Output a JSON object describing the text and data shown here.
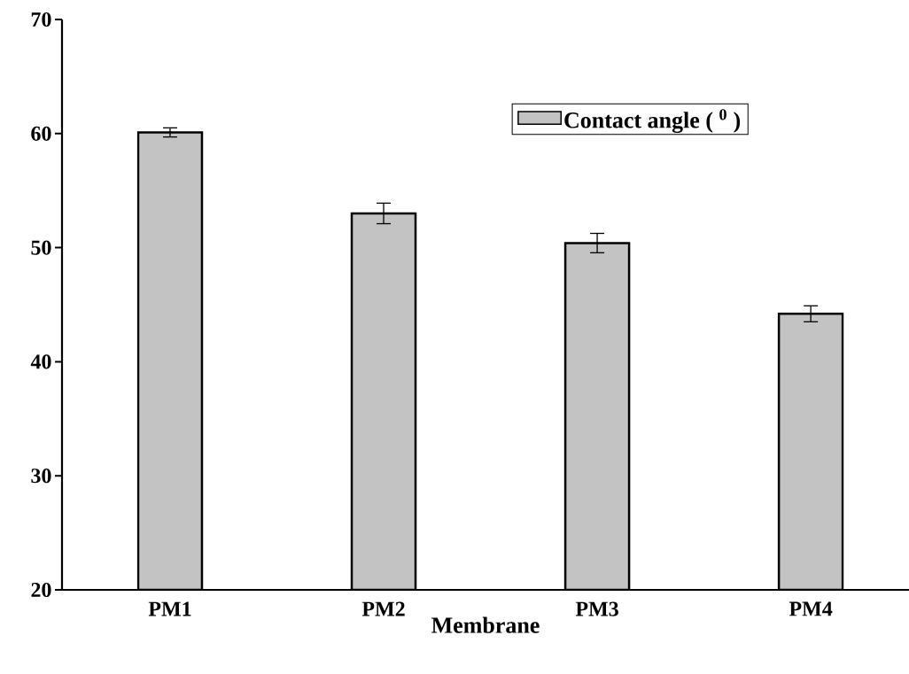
{
  "chart_data": {
    "type": "bar",
    "xlabel": "Membrane",
    "categories": [
      "PM1",
      "PM2",
      "PM3",
      "PM4"
    ],
    "series": [
      {
        "name": "Contact angle ( $^{0}$ )",
        "color": "#c3c3c3",
        "values": [
          60.1,
          53.0,
          50.4,
          44.2
        ],
        "errors": [
          0.4,
          0.9,
          0.85,
          0.7
        ]
      }
    ],
    "ylim": [
      20,
      70
    ],
    "yticks": [
      20,
      30,
      40,
      50,
      60,
      70
    ],
    "grid": false,
    "legend": "top right"
  }
}
